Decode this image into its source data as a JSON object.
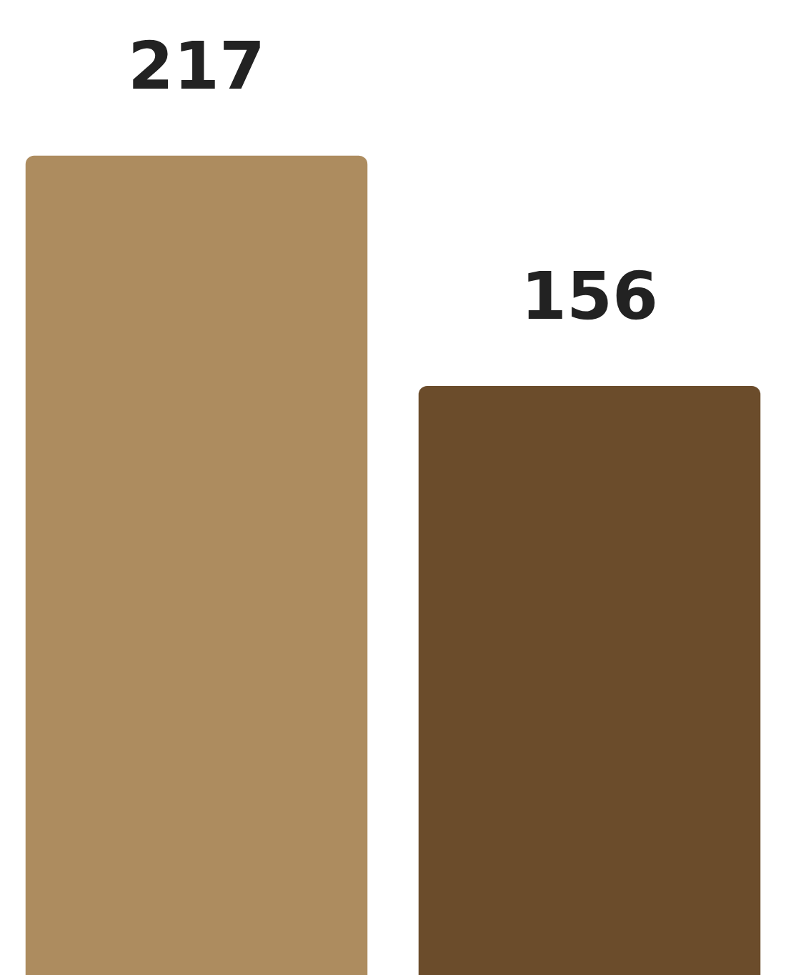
{
  "chart_data": {
    "type": "bar",
    "categories": [
      null,
      null
    ],
    "values": [
      217,
      156
    ],
    "colors": [
      "#ad8c5f",
      "#6b4c2b"
    ],
    "data_labels": true
  }
}
